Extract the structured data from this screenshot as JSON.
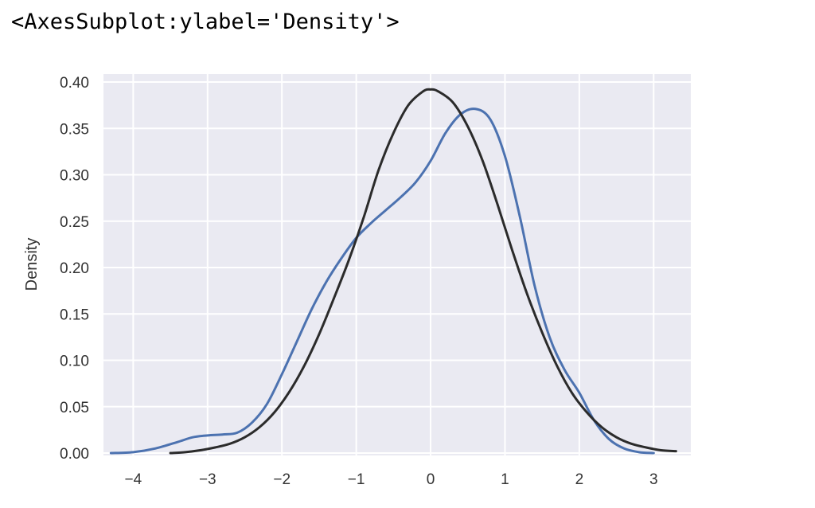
{
  "repr_text": "<AxesSubplot:ylabel='Density'>",
  "chart_data": {
    "type": "line",
    "title": "",
    "xlabel": "",
    "ylabel": "Density",
    "xlim": [
      -4.4,
      3.5
    ],
    "ylim": [
      0.0,
      0.4
    ],
    "xticks": [
      -4,
      -3,
      -2,
      -1,
      0,
      1,
      2,
      3
    ],
    "xtick_labels": [
      "−4",
      "−3",
      "−2",
      "−1",
      "0",
      "1",
      "2",
      "3"
    ],
    "yticks": [
      0.0,
      0.05,
      0.1,
      0.15,
      0.2,
      0.25,
      0.3,
      0.35,
      0.4
    ],
    "ytick_labels": [
      "0.00",
      "0.05",
      "0.10",
      "0.15",
      "0.20",
      "0.25",
      "0.30",
      "0.35",
      "0.40"
    ],
    "grid": true,
    "background": "#eaeaf2",
    "series": [
      {
        "color": "#4c72b0",
        "x": [
          -4.3,
          -4.0,
          -3.7,
          -3.4,
          -3.2,
          -3.0,
          -2.8,
          -2.6,
          -2.4,
          -2.2,
          -2.0,
          -1.8,
          -1.6,
          -1.4,
          -1.2,
          -1.0,
          -0.8,
          -0.6,
          -0.4,
          -0.2,
          0.0,
          0.2,
          0.4,
          0.6,
          0.8,
          1.0,
          1.2,
          1.4,
          1.6,
          1.8,
          2.0,
          2.2,
          2.4,
          2.6,
          2.8,
          3.0
        ],
        "y": [
          0.0,
          0.001,
          0.005,
          0.012,
          0.017,
          0.019,
          0.02,
          0.022,
          0.033,
          0.053,
          0.085,
          0.12,
          0.155,
          0.185,
          0.21,
          0.232,
          0.248,
          0.262,
          0.276,
          0.292,
          0.315,
          0.345,
          0.365,
          0.371,
          0.36,
          0.32,
          0.255,
          0.18,
          0.125,
          0.09,
          0.065,
          0.035,
          0.015,
          0.005,
          0.001,
          0.0
        ]
      },
      {
        "color": "#2b2b2b",
        "x": [
          -3.5,
          -3.3,
          -3.1,
          -2.9,
          -2.7,
          -2.5,
          -2.3,
          -2.1,
          -1.9,
          -1.7,
          -1.5,
          -1.3,
          -1.1,
          -0.9,
          -0.7,
          -0.5,
          -0.3,
          -0.1,
          0.0,
          0.1,
          0.3,
          0.5,
          0.7,
          0.9,
          1.1,
          1.3,
          1.5,
          1.7,
          1.9,
          2.1,
          2.3,
          2.5,
          2.7,
          2.9,
          3.1,
          3.3
        ],
        "y": [
          0.0,
          0.001,
          0.003,
          0.006,
          0.01,
          0.017,
          0.028,
          0.044,
          0.066,
          0.094,
          0.128,
          0.167,
          0.208,
          0.254,
          0.305,
          0.345,
          0.375,
          0.39,
          0.392,
          0.39,
          0.378,
          0.352,
          0.315,
          0.268,
          0.218,
          0.171,
          0.13,
          0.094,
          0.065,
          0.044,
          0.028,
          0.017,
          0.01,
          0.006,
          0.003,
          0.002
        ]
      }
    ]
  }
}
